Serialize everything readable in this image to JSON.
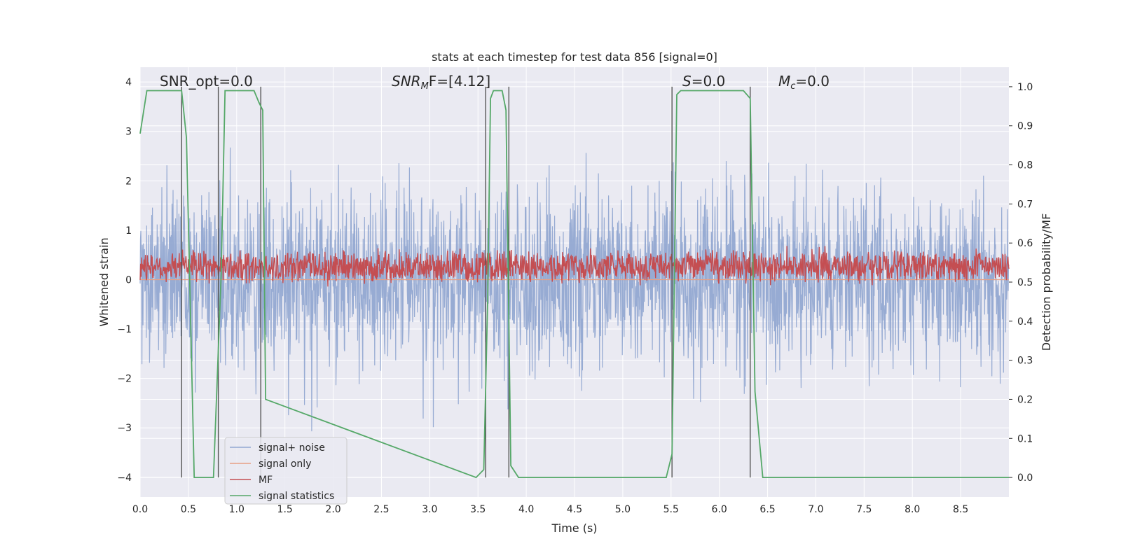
{
  "chart_data": {
    "type": "line",
    "title": "stats at each timestep for test data 856 [signal=0]",
    "xlabel": "Time (s)",
    "ylabel_left": "Whitened strain",
    "ylabel_right": "Detection probability/MF",
    "xlim": [
      0,
      9.0
    ],
    "ylim_left": [
      -4.4,
      4.3
    ],
    "ylim_right": [
      -0.05,
      1.05
    ],
    "x_ticks": [
      "0.0",
      "0.5",
      "1.0",
      "1.5",
      "2.0",
      "2.5",
      "3.0",
      "3.5",
      "4.0",
      "4.5",
      "5.0",
      "5.5",
      "6.0",
      "6.5",
      "7.0",
      "7.5",
      "8.0",
      "8.5"
    ],
    "y_ticks_left": [
      "4",
      "3",
      "2",
      "1",
      "0",
      "−1",
      "−2",
      "−3",
      "−4"
    ],
    "y_ticks_right": [
      "1.0",
      "0.9",
      "0.8",
      "0.7",
      "0.6",
      "0.5",
      "0.4",
      "0.3",
      "0.2",
      "0.1",
      "0.0"
    ],
    "grid": true,
    "legend_placement": "lower-left",
    "annotations": {
      "snr_opt": "SNR_opt=0.0",
      "snr_mf_italic": "SNR",
      "snr_mf_sub": "M",
      "snr_mf_rest": "F=[4.12]",
      "s_italic": "S",
      "s_rest": "=0.0",
      "mc_italic": "M",
      "mc_sub": "c",
      "mc_rest": "=0.0"
    },
    "series": [
      {
        "name": "signal+ noise",
        "color": "#92a8d1",
        "axis": "left",
        "kind": "noise",
        "std": 0.85
      },
      {
        "name": "signal only",
        "color": "#e8a084",
        "axis": "left",
        "kind": "flat",
        "value": 0.0
      },
      {
        "name": "MF",
        "color": "#c44e52",
        "axis": "right",
        "kind": "noise",
        "mean": 0.54,
        "spread": 0.02
      },
      {
        "name": "signal statistics",
        "color": "#55a868",
        "axis": "right",
        "x": [
          0.0,
          0.07,
          0.1,
          0.43,
          0.48,
          0.56,
          0.76,
          0.84,
          0.88,
          1.18,
          1.23,
          1.27,
          1.3,
          3.48,
          3.56,
          3.6,
          3.63,
          3.66,
          3.75,
          3.79,
          3.84,
          3.92,
          5.45,
          5.51,
          5.56,
          5.6,
          6.25,
          6.32,
          6.37,
          6.45,
          9.0
        ],
        "y": [
          0.88,
          0.99,
          0.99,
          0.99,
          0.87,
          0.0,
          0.0,
          0.52,
          0.99,
          0.99,
          0.96,
          0.94,
          0.2,
          0.0,
          0.02,
          0.45,
          0.97,
          0.99,
          0.99,
          0.94,
          0.03,
          0.0,
          0.0,
          0.06,
          0.98,
          0.99,
          0.99,
          0.97,
          0.22,
          0.0,
          0.0
        ]
      }
    ],
    "vertical_lines_x": [
      0.43,
      0.81,
      1.25,
      3.58,
      3.82,
      5.51,
      6.32
    ],
    "vertical_line_color": "#555555"
  }
}
